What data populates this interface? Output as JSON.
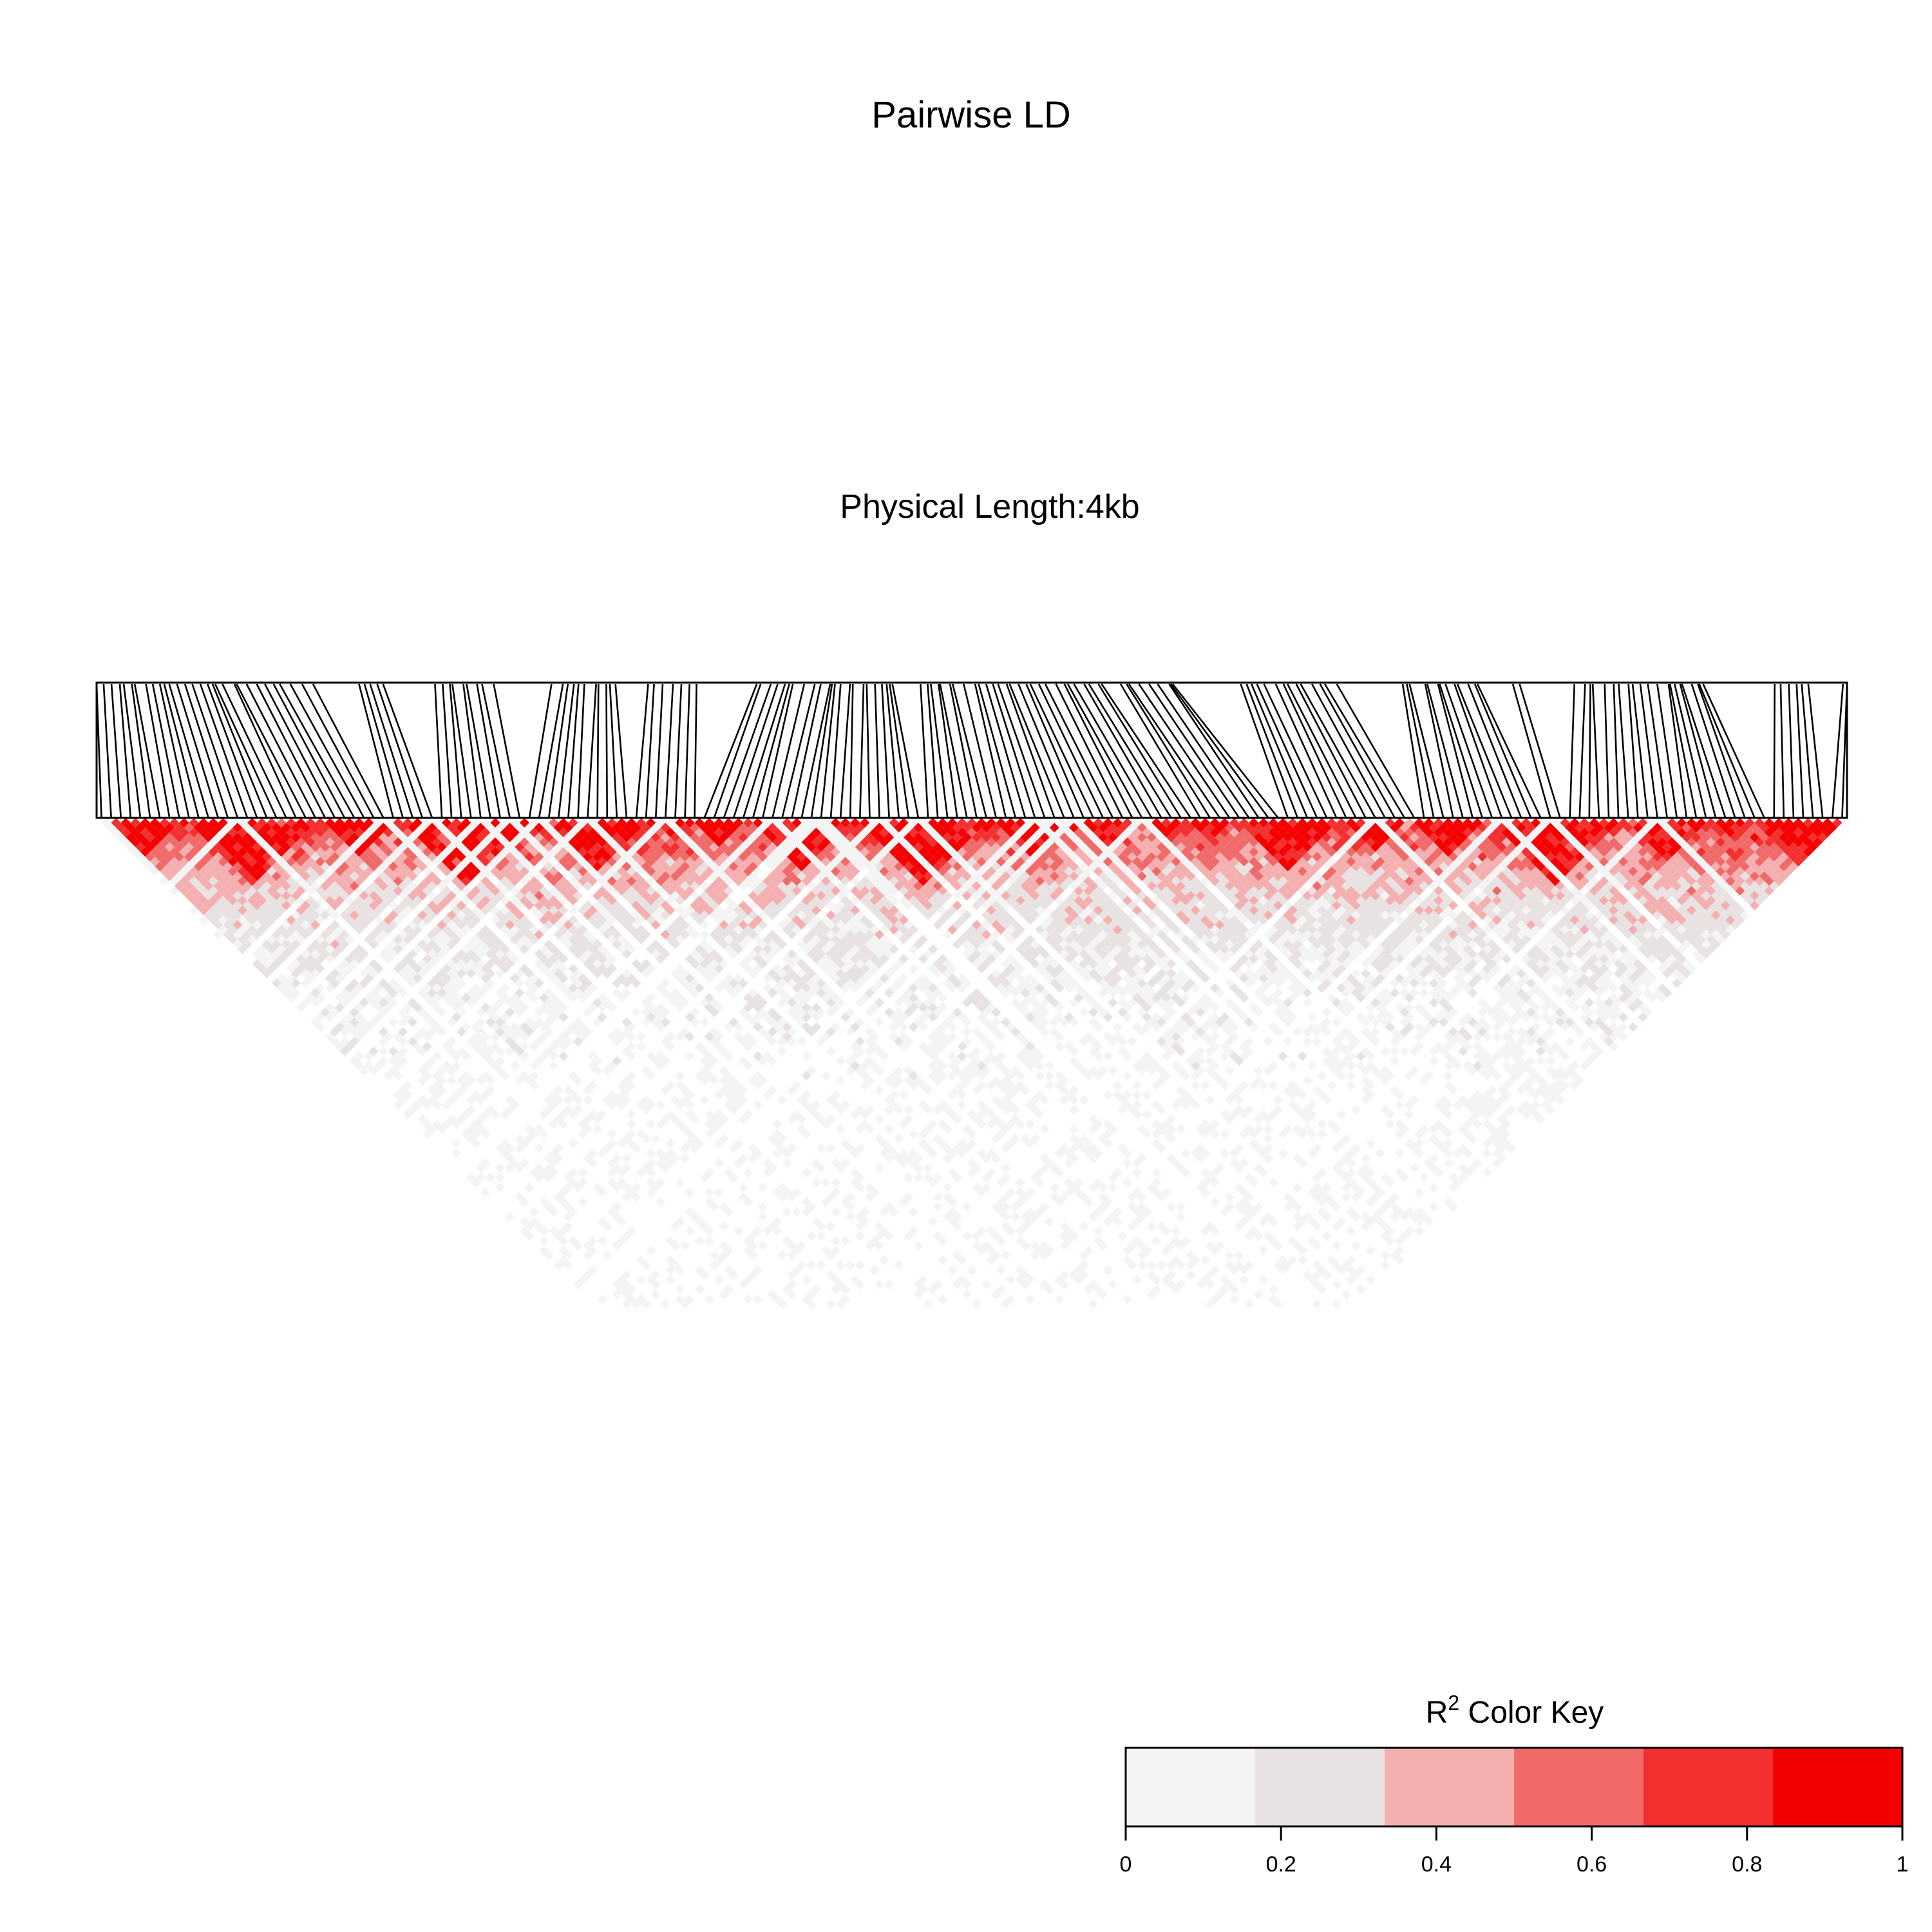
{
  "chart_data": {
    "type": "heatmap",
    "title": "Pairwise LD",
    "subtitle": "Physical Length:4kb",
    "legend": {
      "title_base": "R",
      "title_sup": "2",
      "title_rest": " Color Key",
      "placement": "bottom-right",
      "bins": [
        {
          "from": 0.0,
          "to": 0.1667,
          "color": "#f4f4f4"
        },
        {
          "from": 0.1667,
          "to": 0.3333,
          "color": "#e8e2e2"
        },
        {
          "from": 0.3333,
          "to": 0.5,
          "color": "#f4b0b0"
        },
        {
          "from": 0.5,
          "to": 0.6667,
          "color": "#f06a6a"
        },
        {
          "from": 0.6667,
          "to": 0.8333,
          "color": "#f23030"
        },
        {
          "from": 0.8333,
          "to": 1.0,
          "color": "#f50000"
        }
      ],
      "ticks": [
        {
          "value": 0,
          "label": "0"
        },
        {
          "value": 0.2,
          "label": "0.2"
        },
        {
          "value": 0.4,
          "label": "0.4"
        },
        {
          "value": 0.6,
          "label": "0.6"
        },
        {
          "value": 0.8,
          "label": "0.8"
        },
        {
          "value": 1,
          "label": "1"
        }
      ]
    },
    "markers": {
      "count": 180,
      "position_range_fraction": [
        0,
        1
      ]
    },
    "colors": {
      "high_ld": "#f50000",
      "low_ld": "#f4f4f4",
      "axis": "#000000"
    }
  }
}
